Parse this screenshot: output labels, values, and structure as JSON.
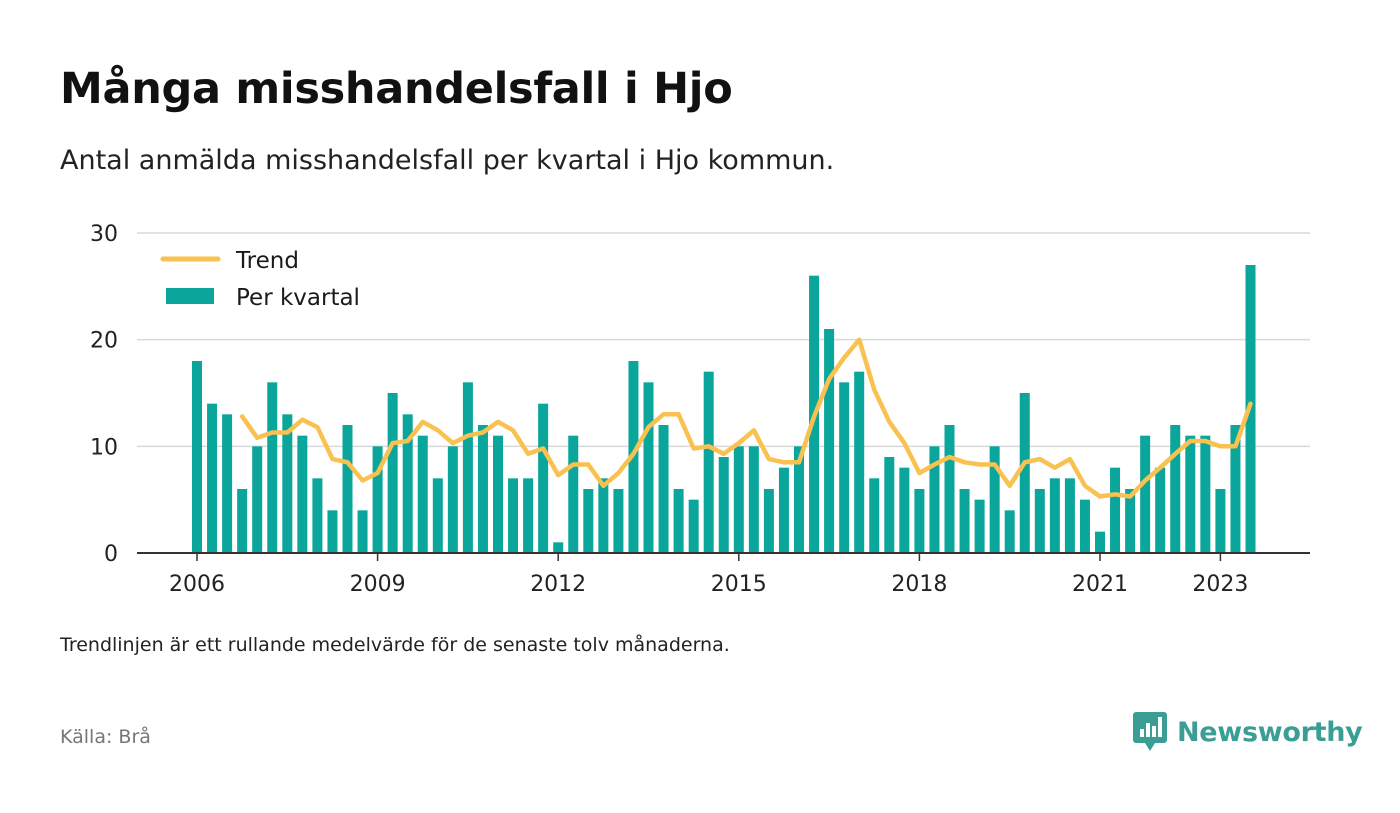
{
  "header": {
    "title": "Många misshandelsfall i Hjo",
    "subtitle": "Antal anmälda misshandelsfall per kvartal i Hjo kommun."
  },
  "footer": {
    "note": "Trendlinjen är ett rullande medelvärde för de senaste tolv månaderna.",
    "source": "Källa: Brå",
    "brand": "Newsworthy"
  },
  "colors": {
    "bars": "#0aa59b",
    "trend": "#f9c14f",
    "grid": "#d9d9d9",
    "axis": "#333333",
    "brand": "#3a9e95"
  },
  "icons": {
    "brand_logo": "newsworthy-chart-bubble-icon"
  },
  "chart_data": {
    "type": "bar",
    "x_start": "2006 Q1",
    "xtick_labels": [
      "2006",
      "2009",
      "2012",
      "2015",
      "2018",
      "2021",
      "2023"
    ],
    "ylim": [
      0,
      30
    ],
    "yticks": [
      0,
      10,
      20,
      30
    ],
    "grid": true,
    "legend_position": "top-left",
    "series": [
      {
        "name": "Per kvartal",
        "kind": "bar",
        "values": [
          18,
          14,
          13,
          6,
          10,
          16,
          13,
          11,
          7,
          4,
          12,
          4,
          10,
          15,
          13,
          11,
          7,
          10,
          16,
          12,
          11,
          7,
          7,
          14,
          1,
          11,
          6,
          7,
          6,
          18,
          16,
          12,
          6,
          5,
          17,
          9,
          10,
          10,
          6,
          8,
          10,
          26,
          21,
          16,
          17,
          7,
          9,
          8,
          6,
          10,
          12,
          6,
          5,
          10,
          4,
          15,
          6,
          7,
          7,
          5,
          2,
          8,
          6,
          11,
          8,
          12,
          11,
          11,
          6,
          12,
          27
        ]
      },
      {
        "name": "Trend",
        "kind": "line",
        "start_index": 3,
        "values": [
          12.8,
          10.8,
          11.3,
          11.3,
          12.5,
          11.8,
          8.8,
          8.5,
          6.8,
          7.5,
          10.3,
          10.5,
          12.3,
          11.5,
          10.3,
          11.0,
          11.3,
          12.3,
          11.5,
          9.3,
          9.8,
          7.3,
          8.3,
          8.3,
          6.3,
          7.5,
          9.3,
          11.8,
          13.0,
          13.0,
          9.8,
          10.0,
          9.3,
          10.3,
          11.5,
          8.8,
          8.5,
          8.5,
          12.8,
          16.3,
          18.3,
          20.0,
          15.3,
          12.3,
          10.3,
          7.5,
          8.3,
          9.0,
          8.5,
          8.3,
          8.3,
          6.3,
          8.5,
          8.8,
          8.0,
          8.8,
          6.3,
          5.3,
          5.5,
          5.3,
          6.8,
          8.0,
          9.3,
          10.5,
          10.5,
          10.0,
          10.0,
          14.0
        ]
      }
    ]
  }
}
